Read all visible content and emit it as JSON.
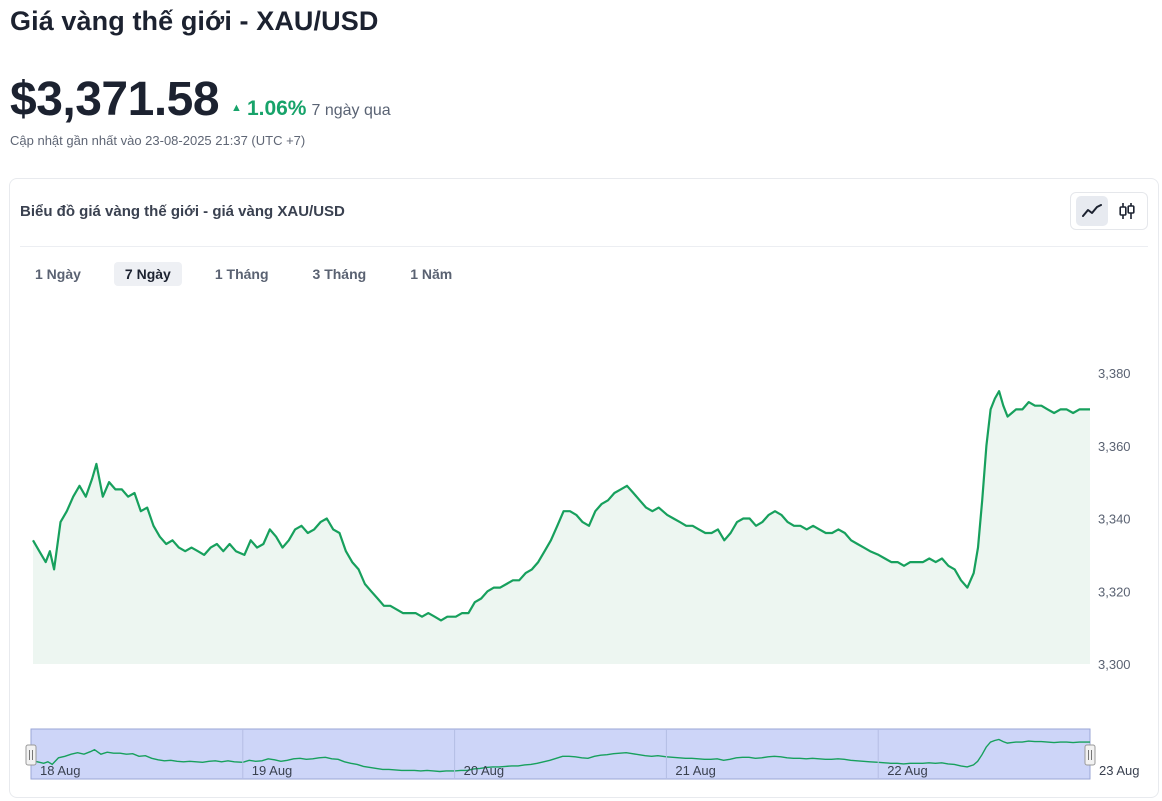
{
  "header": {
    "title": "Giá vàng thế giới - XAU/USD",
    "price": "$3,371.58",
    "change_pct": "1.06%",
    "change_period": "7 ngày qua",
    "updated": "Cập nhật gần nhất vào 23-08-2025 21:37 (UTC +7)"
  },
  "card": {
    "title": "Biểu đồ giá vàng thế giới - giá vàng XAU/USD",
    "chart_types": [
      "line-chart-icon",
      "candlestick-icon"
    ],
    "active_chart_type": "line-chart-icon"
  },
  "ranges": [
    {
      "label": "1 Ngày",
      "active": false
    },
    {
      "label": "7 Ngày",
      "active": true
    },
    {
      "label": "1 Tháng",
      "active": false
    },
    {
      "label": "3 Tháng",
      "active": false
    },
    {
      "label": "1 Năm",
      "active": false
    }
  ],
  "colors": {
    "line": "#17a05d",
    "area": "#edf6f1",
    "up": "#17a36a",
    "navigator_fill": "#cdd5f8",
    "navigator_border": "#9aa6d6"
  },
  "chart_data": {
    "type": "area",
    "title": "",
    "xlabel": "",
    "ylabel": "",
    "ylim": [
      3300,
      3385
    ],
    "y_ticks": [
      3300,
      3320,
      3340,
      3360,
      3380
    ],
    "y_tick_labels": [
      "3,300",
      "3,320",
      "3,340",
      "3,360",
      "3,380"
    ],
    "x_range": [
      0,
      5
    ],
    "navigator_ticks": [
      {
        "x": 0,
        "label": "18 Aug"
      },
      {
        "x": 1,
        "label": "19 Aug"
      },
      {
        "x": 2,
        "label": "20 Aug"
      },
      {
        "x": 3,
        "label": "21 Aug"
      },
      {
        "x": 4,
        "label": "22 Aug"
      },
      {
        "x": 5,
        "label": "23 Aug"
      }
    ],
    "series": [
      {
        "points": [
          [
            0.0,
            3334
          ],
          [
            0.03,
            3331
          ],
          [
            0.06,
            3328
          ],
          [
            0.08,
            3331
          ],
          [
            0.1,
            3326
          ],
          [
            0.13,
            3339
          ],
          [
            0.16,
            3342
          ],
          [
            0.19,
            3346
          ],
          [
            0.22,
            3349
          ],
          [
            0.25,
            3346
          ],
          [
            0.28,
            3351
          ],
          [
            0.3,
            3355
          ],
          [
            0.33,
            3346
          ],
          [
            0.36,
            3350
          ],
          [
            0.39,
            3348
          ],
          [
            0.42,
            3348
          ],
          [
            0.45,
            3346
          ],
          [
            0.48,
            3347
          ],
          [
            0.51,
            3342
          ],
          [
            0.54,
            3343
          ],
          [
            0.57,
            3338
          ],
          [
            0.6,
            3335
          ],
          [
            0.63,
            3333
          ],
          [
            0.66,
            3334
          ],
          [
            0.69,
            3332
          ],
          [
            0.72,
            3331
          ],
          [
            0.75,
            3332
          ],
          [
            0.78,
            3331
          ],
          [
            0.81,
            3330
          ],
          [
            0.84,
            3332
          ],
          [
            0.87,
            3333
          ],
          [
            0.9,
            3331
          ],
          [
            0.93,
            3333
          ],
          [
            0.96,
            3331
          ],
          [
            1.0,
            3330
          ],
          [
            1.03,
            3334
          ],
          [
            1.06,
            3332
          ],
          [
            1.09,
            3333
          ],
          [
            1.12,
            3337
          ],
          [
            1.15,
            3335
          ],
          [
            1.18,
            3332
          ],
          [
            1.21,
            3334
          ],
          [
            1.24,
            3337
          ],
          [
            1.27,
            3338
          ],
          [
            1.3,
            3336
          ],
          [
            1.33,
            3337
          ],
          [
            1.36,
            3339
          ],
          [
            1.39,
            3340
          ],
          [
            1.42,
            3337
          ],
          [
            1.45,
            3336
          ],
          [
            1.48,
            3331
          ],
          [
            1.51,
            3328
          ],
          [
            1.54,
            3326
          ],
          [
            1.57,
            3322
          ],
          [
            1.6,
            3320
          ],
          [
            1.63,
            3318
          ],
          [
            1.66,
            3316
          ],
          [
            1.69,
            3316
          ],
          [
            1.72,
            3315
          ],
          [
            1.75,
            3314
          ],
          [
            1.78,
            3314
          ],
          [
            1.81,
            3314
          ],
          [
            1.84,
            3313
          ],
          [
            1.87,
            3314
          ],
          [
            1.9,
            3313
          ],
          [
            1.93,
            3312
          ],
          [
            1.96,
            3313
          ],
          [
            2.0,
            3313
          ],
          [
            2.03,
            3314
          ],
          [
            2.06,
            3314
          ],
          [
            2.09,
            3317
          ],
          [
            2.12,
            3318
          ],
          [
            2.15,
            3320
          ],
          [
            2.18,
            3321
          ],
          [
            2.21,
            3321
          ],
          [
            2.24,
            3322
          ],
          [
            2.27,
            3323
          ],
          [
            2.3,
            3323
          ],
          [
            2.33,
            3325
          ],
          [
            2.36,
            3326
          ],
          [
            2.39,
            3328
          ],
          [
            2.42,
            3331
          ],
          [
            2.45,
            3334
          ],
          [
            2.48,
            3338
          ],
          [
            2.51,
            3342
          ],
          [
            2.54,
            3342
          ],
          [
            2.57,
            3341
          ],
          [
            2.6,
            3339
          ],
          [
            2.63,
            3338
          ],
          [
            2.66,
            3342
          ],
          [
            2.69,
            3344
          ],
          [
            2.72,
            3345
          ],
          [
            2.75,
            3347
          ],
          [
            2.78,
            3348
          ],
          [
            2.81,
            3349
          ],
          [
            2.84,
            3347
          ],
          [
            2.87,
            3345
          ],
          [
            2.9,
            3343
          ],
          [
            2.93,
            3342
          ],
          [
            2.96,
            3343
          ],
          [
            3.0,
            3341
          ],
          [
            3.03,
            3340
          ],
          [
            3.06,
            3339
          ],
          [
            3.09,
            3338
          ],
          [
            3.12,
            3338
          ],
          [
            3.15,
            3337
          ],
          [
            3.18,
            3336
          ],
          [
            3.21,
            3336
          ],
          [
            3.24,
            3337
          ],
          [
            3.27,
            3334
          ],
          [
            3.3,
            3336
          ],
          [
            3.33,
            3339
          ],
          [
            3.36,
            3340
          ],
          [
            3.39,
            3340
          ],
          [
            3.42,
            3338
          ],
          [
            3.45,
            3339
          ],
          [
            3.48,
            3341
          ],
          [
            3.51,
            3342
          ],
          [
            3.54,
            3341
          ],
          [
            3.57,
            3339
          ],
          [
            3.6,
            3338
          ],
          [
            3.63,
            3338
          ],
          [
            3.66,
            3337
          ],
          [
            3.69,
            3338
          ],
          [
            3.72,
            3337
          ],
          [
            3.75,
            3336
          ],
          [
            3.78,
            3336
          ],
          [
            3.81,
            3337
          ],
          [
            3.84,
            3336
          ],
          [
            3.87,
            3334
          ],
          [
            3.9,
            3333
          ],
          [
            3.93,
            3332
          ],
          [
            3.96,
            3331
          ],
          [
            4.0,
            3330
          ],
          [
            4.03,
            3329
          ],
          [
            4.06,
            3328
          ],
          [
            4.09,
            3328
          ],
          [
            4.12,
            3327
          ],
          [
            4.15,
            3328
          ],
          [
            4.18,
            3328
          ],
          [
            4.21,
            3328
          ],
          [
            4.24,
            3329
          ],
          [
            4.27,
            3328
          ],
          [
            4.3,
            3329
          ],
          [
            4.33,
            3327
          ],
          [
            4.36,
            3326
          ],
          [
            4.39,
            3323
          ],
          [
            4.42,
            3321
          ],
          [
            4.45,
            3325
          ],
          [
            4.47,
            3332
          ],
          [
            4.49,
            3345
          ],
          [
            4.51,
            3360
          ],
          [
            4.53,
            3370
          ],
          [
            4.55,
            3373
          ],
          [
            4.57,
            3375
          ],
          [
            4.59,
            3371
          ],
          [
            4.61,
            3368
          ],
          [
            4.63,
            3369
          ],
          [
            4.65,
            3370
          ],
          [
            4.68,
            3370
          ],
          [
            4.71,
            3372
          ],
          [
            4.74,
            3371
          ],
          [
            4.77,
            3371
          ],
          [
            4.8,
            3370
          ],
          [
            4.83,
            3369
          ],
          [
            4.86,
            3370
          ],
          [
            4.89,
            3370
          ],
          [
            4.92,
            3369
          ],
          [
            4.95,
            3370
          ],
          [
            4.98,
            3370
          ],
          [
            5.0,
            3370
          ]
        ]
      }
    ]
  }
}
